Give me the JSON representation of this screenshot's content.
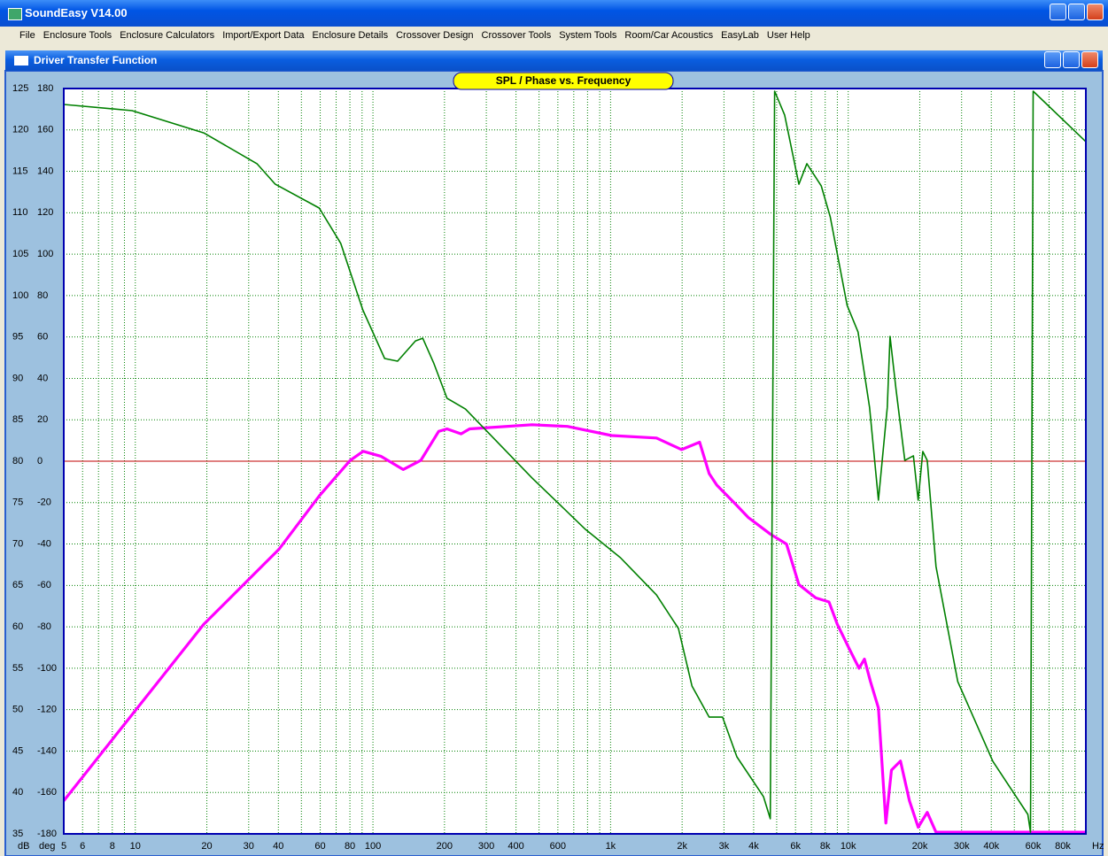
{
  "window": {
    "title": "SoundEasy V14.00"
  },
  "menu": [
    "File",
    "Enclosure Tools",
    "Enclosure Calculators",
    "Import/Export Data",
    "Enclosure Details",
    "Crossover Design",
    "Crossover Tools",
    "System Tools",
    "Room/Car Acoustics",
    "EasyLab",
    "User Help"
  ],
  "subwindow": {
    "title": "Driver Transfer Function"
  },
  "chart_data": {
    "type": "line",
    "title": "SPL / Phase vs. Frequency",
    "x_label": "Hz",
    "y_label": "dB",
    "y2_label": "deg",
    "xscale": "log",
    "xlim": [
      5,
      100000
    ],
    "xticks": [
      5,
      6,
      8,
      10,
      20,
      30,
      40,
      60,
      80,
      100,
      200,
      300,
      400,
      600,
      {
        "value": 1000,
        "label": "1k"
      },
      {
        "value": 2000,
        "label": "2k"
      },
      {
        "value": 3000,
        "label": "3k"
      },
      {
        "value": 4000,
        "label": "4k"
      },
      {
        "value": 6000,
        "label": "6k"
      },
      {
        "value": 8000,
        "label": "8k"
      },
      {
        "value": 10000,
        "label": "10k"
      },
      {
        "value": 20000,
        "label": "20k"
      },
      {
        "value": 30000,
        "label": "30k"
      },
      {
        "value": 40000,
        "label": "40k"
      },
      {
        "value": 60000,
        "label": "60k"
      },
      {
        "value": 80000,
        "label": "80k"
      }
    ],
    "xminor": [
      7,
      9,
      50,
      70,
      90,
      500,
      700,
      800,
      900,
      5000,
      7000,
      9000,
      50000,
      70000,
      90000
    ],
    "ylim": [
      35,
      125
    ],
    "yticks": [
      35,
      40,
      45,
      50,
      55,
      60,
      65,
      70,
      75,
      80,
      85,
      90,
      95,
      100,
      105,
      110,
      115,
      120,
      125
    ],
    "y2lim": [
      -180,
      180
    ],
    "y2ticks": [
      -180,
      -160,
      -140,
      -120,
      -100,
      -80,
      -60,
      -40,
      -20,
      0,
      20,
      40,
      60,
      80,
      100,
      120,
      140,
      160,
      180
    ],
    "grid": true,
    "grid_color": "#008000",
    "zero_line": {
      "value": 0,
      "axis": "y2",
      "color": "#c00000"
    },
    "series": [
      {
        "color": "#ff00ff",
        "axis": "y",
        "x": [
          5,
          19.4,
          40.3,
          59.4,
          80.2,
          91,
          108,
          134,
          159,
          189,
          205,
          235,
          255,
          467,
          658,
          1010,
          1560,
          1990,
          2370,
          2600,
          2800,
          3360,
          3800,
          4700,
          5500,
          6200,
          7300,
          8300,
          9000,
          10200,
          11100,
          11700,
          12400,
          13400,
          14400,
          15200,
          16600,
          18100,
          19700,
          21500,
          23400,
          100000
        ],
        "values": [
          39.0,
          60.3,
          69.4,
          75.8,
          80.1,
          81.2,
          80.6,
          79.0,
          80.1,
          83.6,
          83.9,
          83.3,
          83.9,
          84.4,
          84.2,
          83.1,
          82.8,
          81.4,
          82.3,
          78.5,
          77.1,
          74.8,
          73.2,
          71.2,
          70.0,
          65.1,
          63.5,
          63.0,
          60.3,
          57.1,
          55.0,
          56.1,
          53.4,
          50.2,
          36.3,
          42.7,
          43.8,
          39.0,
          35.8,
          37.6,
          35.2,
          35.2
        ]
      },
      {
        "color": "#008000",
        "axis": "y2",
        "x": [
          5,
          9.7,
          19.4,
          32.5,
          38.8,
          59.4,
          73.2,
          90.6,
          112,
          127,
          151,
          162,
          180,
          205,
          245,
          467,
          783,
          1100,
          1560,
          1930,
          2200,
          2600,
          2960,
          3400,
          4400,
          4700,
          4900,
          5400,
          6200,
          6700,
          7700,
          8400,
          9900,
          11000,
          12300,
          13400,
          14600,
          15000,
          15900,
          17300,
          18800,
          19700,
          20600,
          21500,
          23400,
          28900,
          40600,
          57000,
          58500,
          60000,
          100000
        ],
        "values": [
          172.3,
          169.3,
          158.6,
          143.7,
          133.8,
          122.3,
          105.2,
          73.1,
          49.6,
          48.3,
          58.1,
          59.4,
          47.5,
          30.4,
          25.2,
          -8.1,
          -32.9,
          -46.6,
          -64.6,
          -80.8,
          -108.6,
          -123.6,
          -123.6,
          -142.8,
          -162,
          -172.7,
          178.7,
          167.2,
          133.8,
          143.7,
          133,
          118,
          75.2,
          62.4,
          26,
          -18.8,
          26,
          60.3,
          34.6,
          0.4,
          2.6,
          -18.8,
          4.7,
          0.4,
          -50.9,
          -106.5,
          -145,
          -170.6,
          -179.2,
          178.7,
          154.3
        ]
      }
    ]
  }
}
